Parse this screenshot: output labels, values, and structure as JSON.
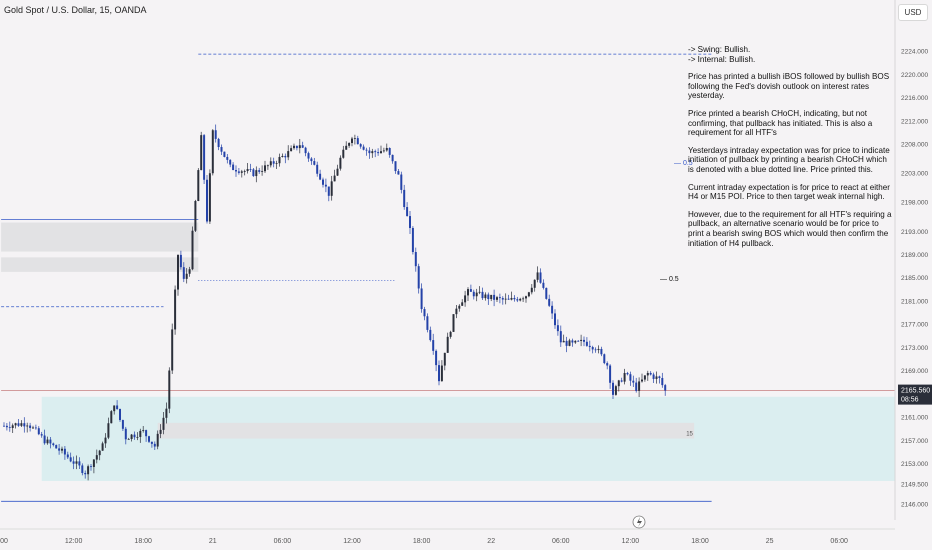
{
  "header": {
    "symbol": "Gold Spot / U.S. Dollar, 15, OANDA",
    "currency": "USD"
  },
  "price_badge": {
    "price": "2165.560",
    "countdown": "08:56",
    "color": "#2a2e39"
  },
  "zone_label": "15",
  "fib_labels": [
    "0.5",
    "0.5"
  ],
  "notes": [
    "-> Swing: Bullish.",
    "-> Internal: Bullish.",
    "Price has printed a bullish iBOS followed by bullish BOS following the Fed's dovish outlook on interest rates yesterday.",
    "Price printed a bearish CHoCH, indicating, but not confirming, that pullback has initiated.  This is also a requirement for all HTF's",
    "Yesterdays intraday expectation was for price to indicate initiation of pullback by printing a bearish CHoCH which is denoted with a blue dotted line.  Price printed this.",
    "Current intraday expectation is for price to react at either H4 or M15 POI.  Price to then target weak internal high.",
    "However, due to the requirement for all HTF's requiring a pullback, an alternative scenario would be for price to print a bearish swing BOS which would then confirm the initiation of H4 pullback."
  ],
  "colors": {
    "up": "#2b2f3a",
    "down": "#2442a8",
    "level": "#3557c8",
    "current_price": "#c67e7e",
    "demand_zone": "#dbeef0",
    "supply_zone": "#e2e2e4",
    "background": "#f5f3f5"
  },
  "chart_data": {
    "type": "candlestick",
    "title": "Gold Spot / U.S. Dollar, 15, OANDA",
    "y_axis": {
      "min": 2145.0,
      "max": 2228.0,
      "ticks": [
        "2146.000",
        "2149.500",
        "2153.000",
        "2157.000",
        "2161.000",
        "2165.000",
        "2169.000",
        "2173.000",
        "2177.000",
        "2181.000",
        "2185.000",
        "2189.000",
        "2193.000",
        "2198.000",
        "2203.000",
        "2208.000",
        "2212.000",
        "2216.000",
        "2220.000",
        "2224.000"
      ]
    },
    "x_axis": {
      "start_label_index": 0,
      "ticks": [
        "00",
        "12:00",
        "18:00",
        "21",
        "06:00",
        "12:00",
        "18:00",
        "22",
        "06:00",
        "12:00",
        "18:00",
        "25",
        "06:00"
      ],
      "hours_per_tick": 6
    },
    "candles_per_hour": 4,
    "path": [
      [
        0,
        2159.5
      ],
      [
        8,
        2160.0
      ],
      [
        14,
        2157.0
      ],
      [
        20,
        2155.0
      ],
      [
        28,
        2151.5
      ],
      [
        34,
        2156.0
      ],
      [
        38,
        2163.5
      ],
      [
        42,
        2157.5
      ],
      [
        48,
        2158.5
      ],
      [
        52,
        2156.0
      ],
      [
        56,
        2162.5
      ],
      [
        60,
        2189.0
      ],
      [
        62,
        2184.5
      ],
      [
        64,
        2187.0
      ],
      [
        68,
        2209.0
      ],
      [
        70,
        2195.0
      ],
      [
        72,
        2210.0
      ],
      [
        78,
        2204.0
      ],
      [
        86,
        2203.0
      ],
      [
        92,
        2204.5
      ],
      [
        98,
        2206.5
      ],
      [
        102,
        2208.0
      ],
      [
        108,
        2203.5
      ],
      [
        112,
        2199.5
      ],
      [
        116,
        2205.5
      ],
      [
        120,
        2209.5
      ],
      [
        126,
        2206.5
      ],
      [
        132,
        2207.0
      ],
      [
        136,
        2202.5
      ],
      [
        140,
        2193.0
      ],
      [
        144,
        2180.0
      ],
      [
        148,
        2173.0
      ],
      [
        150,
        2167.5
      ],
      [
        152,
        2172.5
      ],
      [
        156,
        2180.0
      ],
      [
        160,
        2182.5
      ],
      [
        164,
        2182.0
      ],
      [
        168,
        2181.5
      ],
      [
        174,
        2181.0
      ],
      [
        180,
        2182.0
      ],
      [
        184,
        2185.5
      ],
      [
        188,
        2180.0
      ],
      [
        192,
        2174.0
      ],
      [
        196,
        2173.5
      ],
      [
        200,
        2174.0
      ],
      [
        204,
        2173.0
      ],
      [
        208,
        2170.0
      ],
      [
        210,
        2165.0
      ],
      [
        214,
        2168.5
      ],
      [
        218,
        2166.0
      ],
      [
        222,
        2168.5
      ],
      [
        226,
        2167.5
      ],
      [
        228,
        2165.5
      ]
    ],
    "levels": [
      {
        "name": "weak-high",
        "price": 2223.5,
        "from_candle": 67,
        "to_candle": 244,
        "style": "dashed"
      },
      {
        "name": "swing-bos",
        "price": 2195.0,
        "from_candle": -1,
        "to_candle": 67,
        "style": "solid"
      },
      {
        "name": "choch",
        "price": 2184.5,
        "from_candle": 67,
        "to_candle": 135,
        "style": "dotted"
      },
      {
        "name": "ibos",
        "price": 2180.0,
        "from_candle": -1,
        "to_candle": 55,
        "style": "dashed"
      },
      {
        "name": "swing-low",
        "price": 2146.5,
        "from_candle": -1,
        "to_candle": 244,
        "style": "solid"
      },
      {
        "name": "current",
        "price": 2165.56,
        "from_candle": -1,
        "to_candle": 330,
        "style": "solid"
      }
    ],
    "zones": [
      {
        "name": "supply-zone-upper",
        "from_price": 2194.5,
        "to_price": 2189.5,
        "from_candle": -1,
        "to_candle": 67
      },
      {
        "name": "supply-zone-lower",
        "from_price": 2188.5,
        "to_price": 2186.0,
        "from_candle": -1,
        "to_candle": 67
      },
      {
        "name": "demand-zone",
        "from_price": 2164.5,
        "to_price": 2150.0,
        "from_candle": 13,
        "to_candle": 330
      },
      {
        "name": "m15-poi",
        "from_price": 2160.0,
        "to_price": 2157.3,
        "from_candle": 53,
        "to_candle": 238
      }
    ]
  }
}
